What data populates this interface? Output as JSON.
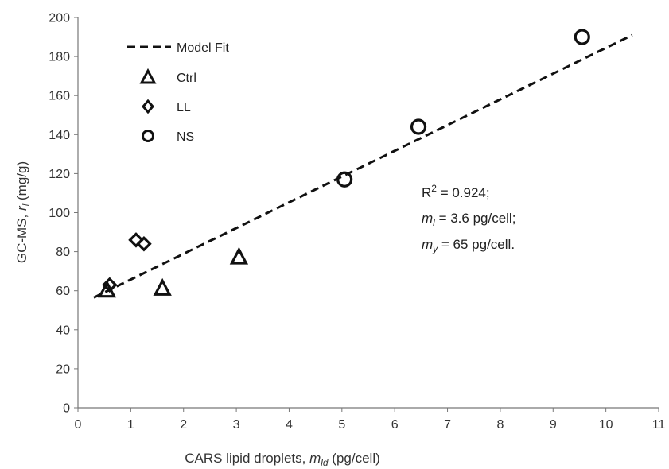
{
  "chart_data": {
    "type": "scatter",
    "xlabel_prefix": "CARS lipid droplets, ",
    "xlabel_var": "m",
    "xlabel_sub": "ld",
    "xlabel_suffix": " (pg/cell)",
    "ylabel_prefix": "GC-MS, ",
    "ylabel_var": "r",
    "ylabel_sub": "l",
    "ylabel_suffix": " (mg/g)",
    "xlim": [
      0,
      11
    ],
    "ylim": [
      0,
      200
    ],
    "x_ticks": [
      "0",
      "1",
      "2",
      "3",
      "4",
      "5",
      "6",
      "7",
      "8",
      "9",
      "10",
      "11"
    ],
    "y_ticks": [
      "0",
      "20",
      "40",
      "60",
      "80",
      "100",
      "120",
      "140",
      "160",
      "180",
      "200"
    ],
    "grid": false,
    "legend_position": "top-left",
    "series": [
      {
        "name": "Ctrl",
        "marker": "triangle",
        "x": [
          0.55,
          1.6,
          3.05
        ],
        "y": [
          60,
          61,
          77
        ]
      },
      {
        "name": "LL",
        "marker": "diamond",
        "x": [
          0.6,
          1.1,
          1.25
        ],
        "y": [
          63,
          86,
          84
        ]
      },
      {
        "name": "NS",
        "marker": "circle",
        "x": [
          5.05,
          6.45,
          9.55
        ],
        "y": [
          117,
          144,
          190
        ]
      }
    ],
    "model_fit": {
      "name": "Model Fit",
      "style": "dashed",
      "x": [
        0.3,
        10.5
      ],
      "y": [
        56.5,
        191
      ]
    },
    "annotations": {
      "r2_label": "R",
      "r2_sup": "2",
      "r2_value": " = 0.924;",
      "ml_var": "m",
      "ml_sub": "l",
      "ml_value": " = 3.6 pg/cell;",
      "my_var": "m",
      "my_sub": "y",
      "my_value": " = 65 pg/cell."
    }
  }
}
